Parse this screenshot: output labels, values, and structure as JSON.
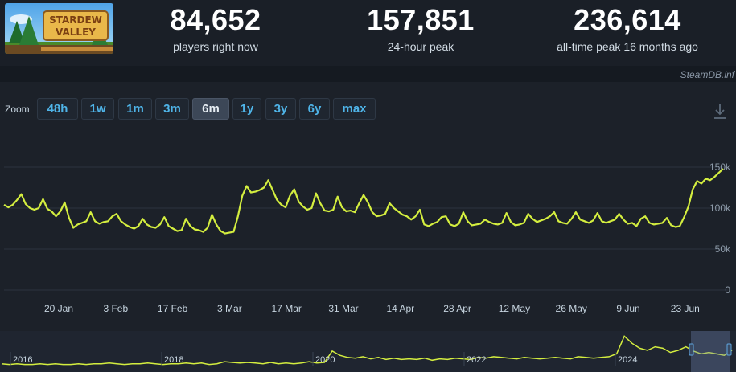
{
  "header": {
    "logo_text": "STARDEW VALLEY",
    "stats": [
      {
        "value": "84,652",
        "label": "players right now"
      },
      {
        "value": "157,851",
        "label": "24-hour peak"
      },
      {
        "value": "236,614",
        "label": "all-time peak 16 months ago"
      }
    ]
  },
  "credit": "SteamDB.inf",
  "zoom": {
    "label": "Zoom",
    "options": [
      "48h",
      "1w",
      "1m",
      "3m",
      "6m",
      "1y",
      "3y",
      "6y",
      "max"
    ],
    "active": "6m"
  },
  "colors": {
    "line": "#d4ee3f",
    "accent": "#4fb4e8",
    "grid": "#2b3340"
  },
  "chart_data": {
    "type": "line",
    "series": [
      {
        "values": [
          104,
          101,
          104,
          110,
          117,
          105,
          100,
          98,
          100,
          111,
          99,
          96,
          90,
          96,
          107,
          88,
          76,
          80,
          82,
          84,
          95,
          84,
          81,
          83,
          84,
          90,
          93,
          84,
          80,
          77,
          75,
          78,
          87,
          80,
          77,
          76,
          80,
          89,
          78,
          75,
          72,
          73,
          87,
          78,
          74,
          73,
          71,
          76,
          92,
          80,
          72,
          69,
          70,
          71,
          90,
          115,
          127,
          119,
          120,
          122,
          125,
          134,
          122,
          110,
          104,
          101,
          115,
          123,
          108,
          102,
          98,
          100,
          118,
          106,
          97,
          96,
          98,
          114,
          101,
          96,
          97,
          95,
          106,
          116,
          107,
          95,
          90,
          91,
          93,
          106,
          100,
          96,
          92,
          90,
          86,
          90,
          98,
          80,
          78,
          81,
          83,
          89,
          90,
          80,
          78,
          81,
          95,
          84,
          79,
          80,
          81,
          86,
          83,
          81,
          80,
          82,
          94,
          83,
          79,
          80,
          82,
          93,
          87,
          83,
          85,
          87,
          90,
          95,
          84,
          82,
          81,
          87,
          95,
          86,
          84,
          82,
          85,
          94,
          84,
          82,
          84,
          86,
          93,
          86,
          81,
          82,
          78,
          87,
          90,
          82,
          80,
          81,
          82,
          88,
          79,
          77,
          78,
          89,
          102,
          123,
          133,
          130,
          136,
          134,
          138,
          143,
          148
        ]
      }
    ],
    "x_ticks": [
      "20 Jan",
      "3 Feb",
      "17 Feb",
      "3 Mar",
      "17 Mar",
      "31 Mar",
      "14 Apr",
      "28 Apr",
      "12 May",
      "26 May",
      "9 Jun",
      "23 Jun"
    ],
    "y_ticks": [
      "150k",
      "100k",
      "50k",
      "0"
    ],
    "ylim": [
      0,
      150
    ],
    "grid": true
  },
  "overview": {
    "year_labels": [
      "2016",
      "2018",
      "2020",
      "2022",
      "2024"
    ],
    "values": [
      6,
      5,
      6,
      5,
      5,
      6,
      5,
      6,
      5,
      5,
      6,
      5,
      6,
      6,
      7,
      6,
      5,
      6,
      6,
      7,
      6,
      5,
      6,
      6,
      7,
      6,
      7,
      5,
      6,
      9,
      8,
      7,
      8,
      7,
      6,
      8,
      6,
      7,
      6,
      7,
      9,
      7,
      8,
      24,
      18,
      15,
      14,
      16,
      13,
      15,
      12,
      14,
      12,
      13,
      12,
      14,
      11,
      13,
      12,
      14,
      13,
      12,
      15,
      14,
      16,
      15,
      14,
      13,
      15,
      14,
      13,
      14,
      15,
      14,
      13,
      16,
      15,
      14,
      15,
      16,
      20,
      45,
      35,
      28,
      25,
      30,
      28,
      22,
      25,
      30,
      24,
      20,
      22,
      20,
      18,
      25
    ]
  }
}
